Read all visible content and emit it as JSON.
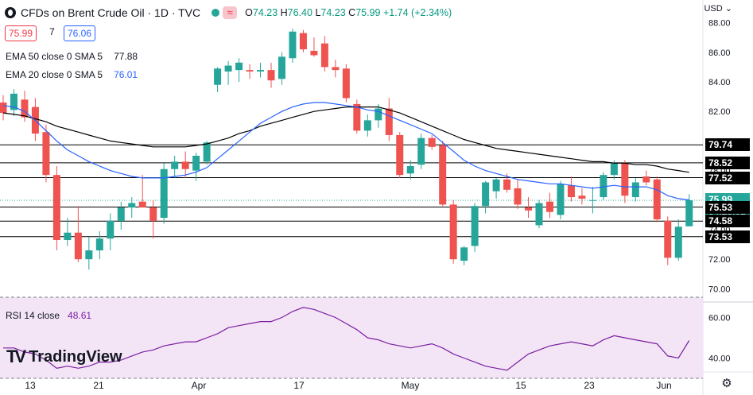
{
  "header": {
    "title": "CFDs on Brent Crude Oil · 1D · TVC",
    "ohlc": {
      "o_label": "O",
      "o": "74.23",
      "h_label": "H",
      "h": "76.40",
      "l_label": "L",
      "l": "74.23",
      "c_label": "C",
      "c": "75.99",
      "change": "+1.74 (+2.34%)"
    },
    "sell_price": "75.99",
    "spread": "7",
    "buy_price": "76.06"
  },
  "indicators": {
    "ema50_label": "EMA 50 close 0 SMA 5",
    "ema50_value": "77.88",
    "ema20_label": "EMA 20 close 0 SMA 5",
    "ema20_value": "76.01",
    "rsi_label": "RSI 14 close",
    "rsi_value": "48.61"
  },
  "currency": "USD",
  "branding": "TradingView",
  "colors": {
    "up": "#26a69a",
    "down": "#ef5350",
    "ema20": "#2962ff",
    "ema50": "#000000",
    "rsi": "#7b1fa2",
    "rsi_band": "#f3e5f5"
  },
  "chart_data": {
    "type": "candlestick",
    "price_axis": {
      "ticks": [
        70,
        72,
        74,
        76,
        78,
        80,
        82,
        84,
        86,
        88
      ],
      "tick_labels": [
        "70.00",
        "72.00",
        "74.00",
        "76.00",
        "78.00",
        "80.00",
        "82.00",
        "84.00",
        "86.00",
        "88.00"
      ],
      "range": [
        69.0,
        89.0
      ]
    },
    "x_axis": {
      "labels": [
        "13",
        "21",
        "Apr",
        "17",
        "May",
        "15",
        "23",
        "Jun"
      ]
    },
    "horizontal_levels": [
      79.74,
      78.52,
      77.52,
      75.53,
      74.58,
      73.53
    ],
    "price_tags": [
      {
        "text": "79.74",
        "value": 79.74,
        "style": "level"
      },
      {
        "text": "78.52",
        "value": 78.52,
        "style": "level"
      },
      {
        "text": "77.52",
        "value": 77.52,
        "style": "level"
      },
      {
        "text": "75.99",
        "value": 75.99,
        "style": "last"
      },
      {
        "text": "04:23:01",
        "value": 75.25,
        "style": "timer"
      },
      {
        "text": "75.53",
        "value": 75.53,
        "style": "level"
      },
      {
        "text": "74.58",
        "value": 74.58,
        "style": "level"
      },
      {
        "text": "73.53",
        "value": 73.53,
        "style": "level"
      }
    ],
    "last_price": 75.99,
    "candles": [
      {
        "o": 82.6,
        "h": 83.1,
        "l": 81.4,
        "c": 81.9
      },
      {
        "o": 82.1,
        "h": 83.5,
        "l": 81.7,
        "c": 83.2
      },
      {
        "o": 82.8,
        "h": 83.4,
        "l": 81.3,
        "c": 81.6
      },
      {
        "o": 82.3,
        "h": 82.9,
        "l": 80.0,
        "c": 80.5
      },
      {
        "o": 80.6,
        "h": 81.1,
        "l": 77.2,
        "c": 77.7
      },
      {
        "o": 77.7,
        "h": 78.3,
        "l": 72.6,
        "c": 73.3
      },
      {
        "o": 73.3,
        "h": 74.8,
        "l": 72.9,
        "c": 73.8
      },
      {
        "o": 73.8,
        "h": 75.6,
        "l": 71.8,
        "c": 72.0
      },
      {
        "o": 72.0,
        "h": 73.5,
        "l": 71.3,
        "c": 72.6
      },
      {
        "o": 72.6,
        "h": 73.9,
        "l": 72.0,
        "c": 73.4
      },
      {
        "o": 73.4,
        "h": 75.1,
        "l": 72.6,
        "c": 74.6
      },
      {
        "o": 74.6,
        "h": 75.9,
        "l": 74.0,
        "c": 75.5
      },
      {
        "o": 75.5,
        "h": 76.2,
        "l": 74.8,
        "c": 75.8
      },
      {
        "o": 75.9,
        "h": 77.7,
        "l": 75.5,
        "c": 75.5
      },
      {
        "o": 75.5,
        "h": 76.0,
        "l": 73.4,
        "c": 74.6
      },
      {
        "o": 74.8,
        "h": 78.5,
        "l": 74.4,
        "c": 78.1
      },
      {
        "o": 78.1,
        "h": 79.0,
        "l": 77.5,
        "c": 78.6
      },
      {
        "o": 78.6,
        "h": 79.3,
        "l": 77.5,
        "c": 78.1
      },
      {
        "o": 78.0,
        "h": 79.2,
        "l": 77.3,
        "c": 79.0
      },
      {
        "o": 78.6,
        "h": 80.0,
        "l": 78.4,
        "c": 79.9
      },
      {
        "o": 83.8,
        "h": 85.0,
        "l": 83.3,
        "c": 84.9
      },
      {
        "o": 84.7,
        "h": 85.4,
        "l": 83.8,
        "c": 85.1
      },
      {
        "o": 84.8,
        "h": 85.6,
        "l": 84.0,
        "c": 85.3
      },
      {
        "o": 84.8,
        "h": 85.2,
        "l": 84.2,
        "c": 84.7
      },
      {
        "o": 84.7,
        "h": 85.3,
        "l": 84.3,
        "c": 84.8
      },
      {
        "o": 84.8,
        "h": 85.3,
        "l": 83.6,
        "c": 84.1
      },
      {
        "o": 84.2,
        "h": 86.0,
        "l": 83.8,
        "c": 85.7
      },
      {
        "o": 85.6,
        "h": 87.6,
        "l": 85.3,
        "c": 87.4
      },
      {
        "o": 87.3,
        "h": 87.5,
        "l": 86.0,
        "c": 86.2
      },
      {
        "o": 86.1,
        "h": 87.0,
        "l": 85.7,
        "c": 85.8
      },
      {
        "o": 86.6,
        "h": 87.1,
        "l": 84.7,
        "c": 85.0
      },
      {
        "o": 85.0,
        "h": 85.5,
        "l": 84.3,
        "c": 84.8
      },
      {
        "o": 84.9,
        "h": 85.2,
        "l": 82.6,
        "c": 82.9
      },
      {
        "o": 82.5,
        "h": 82.8,
        "l": 80.5,
        "c": 80.7
      },
      {
        "o": 80.7,
        "h": 81.8,
        "l": 80.3,
        "c": 81.4
      },
      {
        "o": 81.4,
        "h": 82.5,
        "l": 80.9,
        "c": 82.2
      },
      {
        "o": 82.2,
        "h": 82.9,
        "l": 80.0,
        "c": 80.4
      },
      {
        "o": 80.4,
        "h": 80.6,
        "l": 77.5,
        "c": 77.7
      },
      {
        "o": 77.8,
        "h": 78.7,
        "l": 77.4,
        "c": 78.3
      },
      {
        "o": 78.4,
        "h": 80.5,
        "l": 78.1,
        "c": 80.2
      },
      {
        "o": 80.2,
        "h": 80.4,
        "l": 79.4,
        "c": 79.6
      },
      {
        "o": 79.7,
        "h": 80.0,
        "l": 75.6,
        "c": 75.7
      },
      {
        "o": 75.7,
        "h": 76.0,
        "l": 71.7,
        "c": 72.0
      },
      {
        "o": 71.9,
        "h": 72.9,
        "l": 71.6,
        "c": 72.8
      },
      {
        "o": 72.9,
        "h": 75.8,
        "l": 72.5,
        "c": 75.6
      },
      {
        "o": 75.6,
        "h": 77.3,
        "l": 75.1,
        "c": 77.2
      },
      {
        "o": 76.6,
        "h": 77.5,
        "l": 76.1,
        "c": 77.4
      },
      {
        "o": 77.4,
        "h": 77.8,
        "l": 76.5,
        "c": 76.7
      },
      {
        "o": 76.8,
        "h": 77.4,
        "l": 75.4,
        "c": 75.7
      },
      {
        "o": 75.5,
        "h": 76.2,
        "l": 74.8,
        "c": 75.3
      },
      {
        "o": 74.3,
        "h": 76.0,
        "l": 74.1,
        "c": 75.8
      },
      {
        "o": 75.9,
        "h": 76.5,
        "l": 74.8,
        "c": 75.2
      },
      {
        "o": 75.0,
        "h": 77.3,
        "l": 74.7,
        "c": 77.1
      },
      {
        "o": 77.0,
        "h": 77.6,
        "l": 75.9,
        "c": 76.2
      },
      {
        "o": 76.3,
        "h": 76.8,
        "l": 75.7,
        "c": 76.1
      },
      {
        "o": 76.0,
        "h": 76.9,
        "l": 75.1,
        "c": 76.0
      },
      {
        "o": 76.2,
        "h": 77.9,
        "l": 76.0,
        "c": 77.7
      },
      {
        "o": 77.7,
        "h": 78.7,
        "l": 77.4,
        "c": 78.5
      },
      {
        "o": 78.5,
        "h": 78.7,
        "l": 75.8,
        "c": 76.3
      },
      {
        "o": 76.2,
        "h": 77.5,
        "l": 75.9,
        "c": 77.2
      },
      {
        "o": 77.6,
        "h": 78.0,
        "l": 77.0,
        "c": 77.2
      },
      {
        "o": 77.4,
        "h": 77.6,
        "l": 74.5,
        "c": 74.7
      },
      {
        "o": 74.6,
        "h": 74.9,
        "l": 71.6,
        "c": 72.1
      },
      {
        "o": 72.1,
        "h": 74.7,
        "l": 71.9,
        "c": 74.2
      },
      {
        "o": 74.23,
        "h": 76.4,
        "l": 74.23,
        "c": 75.99
      }
    ],
    "ema20": [
      82.4,
      82.3,
      82.0,
      81.4,
      80.7,
      80.0,
      79.4,
      79.0,
      78.6,
      78.3,
      78.0,
      77.8,
      77.6,
      77.5,
      77.5,
      77.5,
      77.6,
      77.7,
      77.9,
      78.2,
      78.8,
      79.4,
      80.0,
      80.6,
      81.2,
      81.6,
      82.0,
      82.3,
      82.5,
      82.6,
      82.6,
      82.5,
      82.4,
      82.3,
      82.1,
      82.0,
      81.7,
      81.4,
      81.1,
      80.8,
      80.5,
      79.9,
      79.3,
      78.7,
      78.3,
      78.0,
      77.8,
      77.6,
      77.4,
      77.3,
      77.2,
      77.1,
      77.1,
      77.0,
      76.9,
      76.8,
      76.9,
      77.0,
      76.9,
      76.9,
      76.9,
      76.7,
      76.3,
      76.1,
      76.01
    ],
    "ema50": [
      81.9,
      81.8,
      81.7,
      81.5,
      81.3,
      81.0,
      80.8,
      80.6,
      80.4,
      80.2,
      80.0,
      79.9,
      79.8,
      79.7,
      79.6,
      79.6,
      79.6,
      79.6,
      79.7,
      79.8,
      80.0,
      80.2,
      80.5,
      80.7,
      81.0,
      81.2,
      81.4,
      81.6,
      81.8,
      82.0,
      82.1,
      82.2,
      82.3,
      82.3,
      82.3,
      82.3,
      82.1,
      81.9,
      81.6,
      81.3,
      81.0,
      80.7,
      80.4,
      80.1,
      79.9,
      79.7,
      79.5,
      79.4,
      79.3,
      79.2,
      79.1,
      79.0,
      78.9,
      78.8,
      78.7,
      78.6,
      78.6,
      78.5,
      78.5,
      78.4,
      78.4,
      78.3,
      78.1,
      78.0,
      77.88
    ],
    "rsi": {
      "ticks": [
        40,
        60
      ],
      "tick_labels": [
        "40.00",
        "60.00"
      ],
      "range": [
        30,
        70
      ],
      "band": [
        30,
        70
      ],
      "values": [
        45,
        45,
        43,
        42,
        39,
        35,
        36,
        35,
        36,
        38,
        38,
        39,
        41,
        43,
        44,
        46,
        47,
        48,
        48,
        50,
        52,
        55,
        56,
        57,
        58,
        58,
        60,
        63,
        65,
        64,
        62,
        60,
        57,
        54,
        50,
        49,
        47,
        46,
        45,
        46,
        47,
        45,
        42,
        40,
        38,
        36,
        35,
        34,
        38,
        42,
        44,
        46,
        47,
        48,
        47,
        46,
        49,
        51,
        50,
        49,
        48,
        47,
        41,
        40,
        48.61
      ]
    }
  }
}
